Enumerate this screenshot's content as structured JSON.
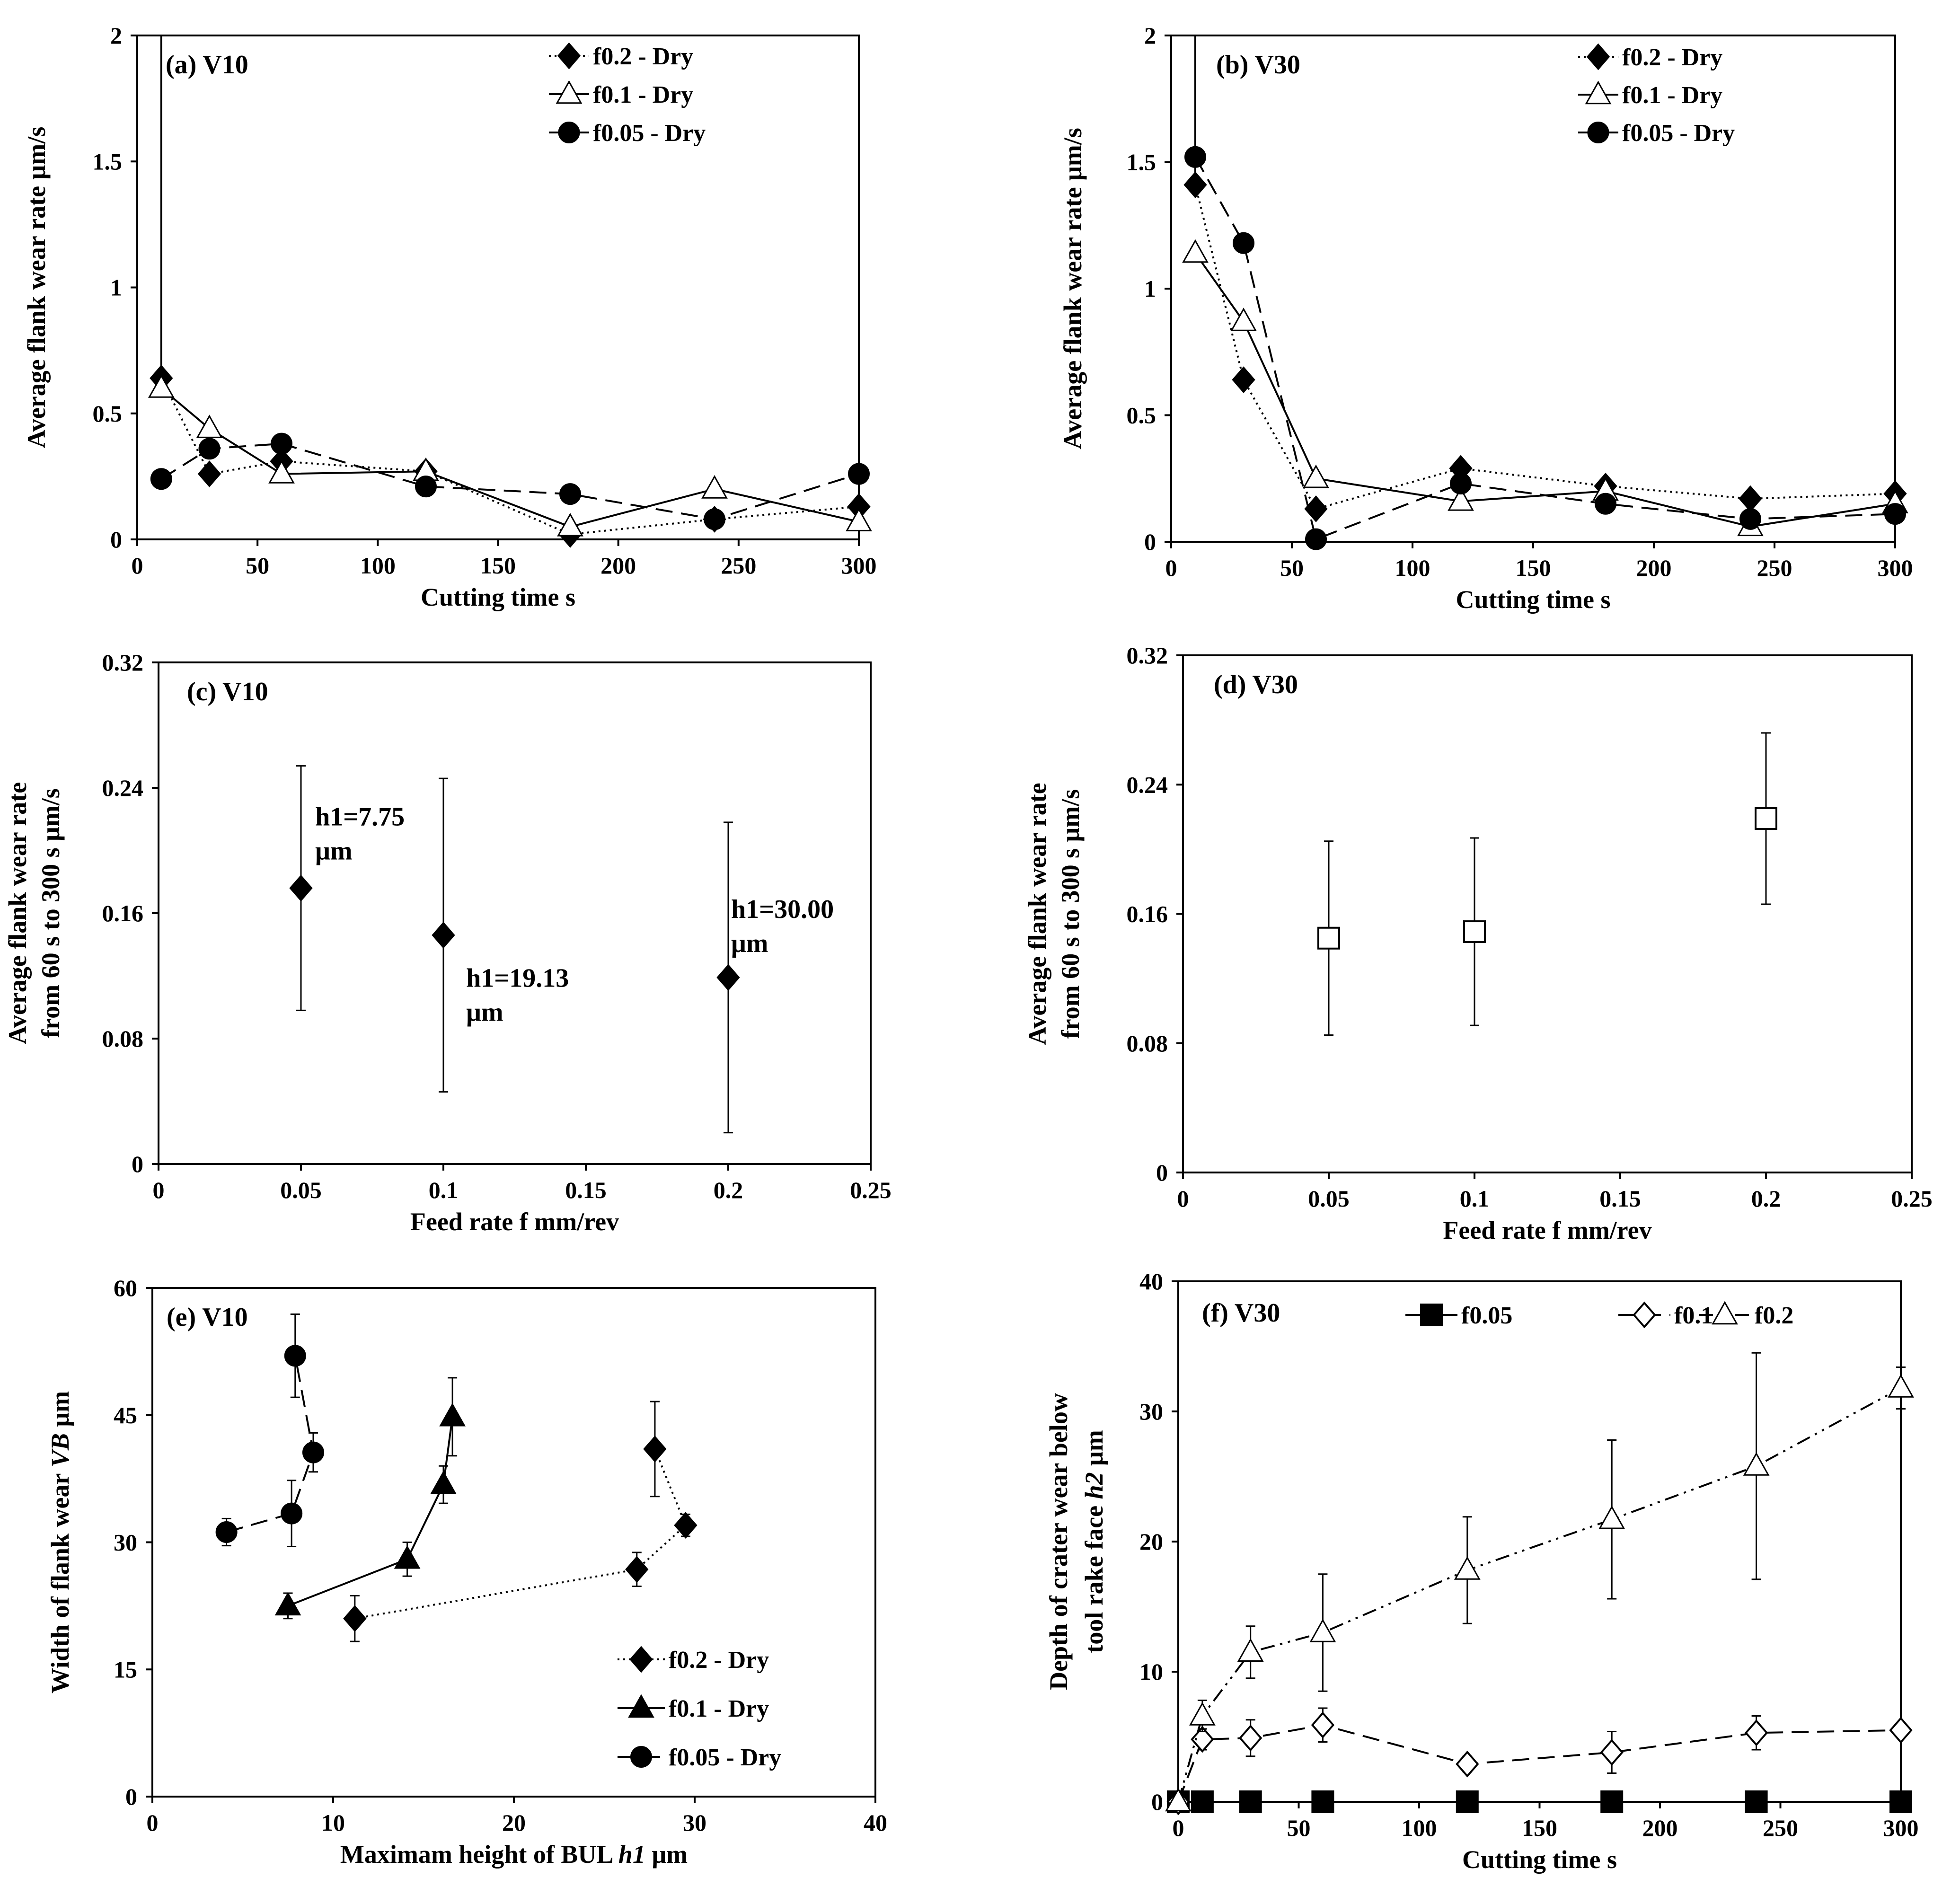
{
  "chart_data": [
    {
      "id": "a",
      "type": "line",
      "title": "(a) V10",
      "xlabel": "Cutting time s",
      "ylabel": "Average flank wear rate μm/s",
      "xlim": [
        0,
        300
      ],
      "ylim": [
        0,
        2
      ],
      "xticks": [
        0,
        50,
        100,
        150,
        200,
        250,
        300
      ],
      "yticks": [
        0,
        0.5,
        1,
        1.5,
        2
      ],
      "ytick_labels": [
        "0",
        "0.5",
        "1",
        "1.5",
        "2"
      ],
      "legend_position": "top-right",
      "spike_from": [
        10,
        2
      ],
      "series": [
        {
          "name": "f0.2 - Dry",
          "marker": "diamond",
          "dash": "dotted",
          "x": [
            10,
            30,
            60,
            120,
            180,
            240,
            300
          ],
          "y": [
            0.64,
            0.26,
            0.31,
            0.27,
            0.02,
            0.08,
            0.13
          ]
        },
        {
          "name": "f0.1 - Dry",
          "marker": "triangle-open",
          "dash": "solid",
          "x": [
            10,
            30,
            60,
            120,
            180,
            240,
            300
          ],
          "y": [
            0.6,
            0.44,
            0.26,
            0.27,
            0.05,
            0.2,
            0.07
          ]
        },
        {
          "name": "f0.05 - Dry",
          "marker": "circle",
          "dash": "dashed",
          "x": [
            10,
            30,
            60,
            120,
            180,
            240,
            300
          ],
          "y": [
            0.24,
            0.36,
            0.38,
            0.21,
            0.18,
            0.08,
            0.26
          ]
        }
      ]
    },
    {
      "id": "b",
      "type": "line",
      "title": "(b) V30",
      "xlabel": "Cutting time s",
      "ylabel": "Average flank wear rate μm/s",
      "xlim": [
        0,
        300
      ],
      "ylim": [
        0,
        2
      ],
      "xticks": [
        0,
        50,
        100,
        150,
        200,
        250,
        300
      ],
      "yticks": [
        0,
        0.5,
        1,
        1.5,
        2
      ],
      "ytick_labels": [
        "0",
        "0.5",
        "1",
        "1.5",
        "2"
      ],
      "legend_position": "top-right",
      "spike_from": [
        10,
        2
      ],
      "series": [
        {
          "name": "f0.2 - Dry",
          "marker": "diamond",
          "dash": "dotted",
          "x": [
            10,
            30,
            60,
            120,
            180,
            240,
            300
          ],
          "y": [
            1.41,
            0.64,
            0.13,
            0.29,
            0.22,
            0.17,
            0.19
          ]
        },
        {
          "name": "f0.1 - Dry",
          "marker": "triangle-open",
          "dash": "solid",
          "x": [
            10,
            30,
            60,
            120,
            180,
            240,
            300
          ],
          "y": [
            1.14,
            0.87,
            0.25,
            0.16,
            0.2,
            0.06,
            0.15
          ]
        },
        {
          "name": "f0.05 - Dry",
          "marker": "circle",
          "dash": "dashed",
          "x": [
            10,
            30,
            60,
            120,
            180,
            240,
            300
          ],
          "y": [
            1.52,
            1.18,
            0.01,
            0.23,
            0.15,
            0.09,
            0.11
          ]
        }
      ]
    },
    {
      "id": "c",
      "type": "scatter",
      "title": "(c) V10",
      "xlabel": "Feed rate f mm/rev",
      "ylabel": [
        "Average flank wear rate",
        "from 60 s to 300 s μm/s"
      ],
      "xlim": [
        0,
        0.25
      ],
      "ylim": [
        0,
        0.32
      ],
      "xticks": [
        0,
        0.05,
        0.1,
        0.15,
        0.2,
        0.25
      ],
      "xtick_labels": [
        "0",
        "0.05",
        "0.1",
        "0.15",
        "0.2",
        "0.25"
      ],
      "yticks": [
        0,
        0.08,
        0.16,
        0.24,
        0.32
      ],
      "ytick_labels": [
        "0",
        "0.08",
        "0.16",
        "0.24",
        "0.32"
      ],
      "series": [
        {
          "name": "V10",
          "marker": "diamond",
          "x": [
            0.05,
            0.1,
            0.2
          ],
          "y": [
            0.176,
            0.146,
            0.119
          ],
          "err": [
            0.078,
            0.1,
            0.099
          ]
        }
      ],
      "annotations": [
        {
          "lines": [
            "h1=7.75",
            "μm"
          ],
          "x": 0.055,
          "y": 0.216
        },
        {
          "lines": [
            "h1=19.13",
            "μm"
          ],
          "x": 0.108,
          "y": 0.113
        },
        {
          "lines": [
            "h1=30.00",
            "μm"
          ],
          "x": 0.201,
          "y": 0.157
        }
      ]
    },
    {
      "id": "d",
      "type": "scatter",
      "title": "(d) V30",
      "xlabel": "Feed rate f mm/rev",
      "ylabel": [
        "Average flank wear rate",
        "from 60 s to 300 s μm/s"
      ],
      "xlim": [
        0,
        0.25
      ],
      "ylim": [
        0,
        0.32
      ],
      "xticks": [
        0,
        0.05,
        0.1,
        0.15,
        0.2,
        0.25
      ],
      "xtick_labels": [
        "0",
        "0.05",
        "0.1",
        "0.15",
        "0.2",
        "0.25"
      ],
      "yticks": [
        0,
        0.08,
        0.16,
        0.24,
        0.32
      ],
      "ytick_labels": [
        "0",
        "0.08",
        "0.16",
        "0.24",
        "0.32"
      ],
      "series": [
        {
          "name": "V30",
          "marker": "square-open",
          "x": [
            0.05,
            0.1,
            0.2
          ],
          "y": [
            0.145,
            0.149,
            0.219
          ],
          "err": [
            0.06,
            0.058,
            0.053
          ]
        }
      ]
    },
    {
      "id": "e",
      "type": "line",
      "title": "(e) V10",
      "xlabel": "Maximam height of BUL",
      "xlabel_var": "h1",
      "xlabel_unit": "μm",
      "ylabel": "Width of flank wear",
      "ylabel_var": "VB",
      "ylabel_unit": "μm",
      "xlim": [
        0,
        40
      ],
      "ylim": [
        0,
        60
      ],
      "xticks": [
        0,
        10,
        20,
        30,
        40
      ],
      "yticks": [
        0,
        15,
        30,
        45,
        60
      ],
      "legend_position": "bottom-right",
      "series": [
        {
          "name": "f0.2 - Dry",
          "marker": "diamond",
          "dash": "dotted",
          "x": [
            11.2,
            26.8,
            29.5,
            27.8
          ],
          "y": [
            21,
            26.8,
            32,
            41
          ],
          "err": [
            2.7,
            2,
            1.3,
            5.6
          ]
        },
        {
          "name": "f0.1 - Dry",
          "marker": "triangle",
          "dash": "solid",
          "x": [
            7.5,
            14.1,
            16.1,
            16.6
          ],
          "y": [
            22.5,
            28,
            36.8,
            44.8
          ],
          "err": [
            1.5,
            2,
            2.2,
            4.6
          ]
        },
        {
          "name": "f0.05 - Dry",
          "marker": "circle",
          "dash": "dashed",
          "x": [
            4.1,
            7.7,
            8.9,
            7.9
          ],
          "y": [
            31.2,
            33.4,
            40.6,
            52
          ],
          "err": [
            1.6,
            3.9,
            2.3,
            4.9
          ]
        }
      ]
    },
    {
      "id": "f",
      "type": "line",
      "title": "(f) V30",
      "xlabel": "Cutting time s",
      "ylabel": [
        "Depth of crater wear below",
        "tool rake face"
      ],
      "ylabel_var": "h2",
      "ylabel_unit": "μm",
      "xlim": [
        0,
        300
      ],
      "ylim": [
        0,
        40
      ],
      "xticks": [
        0,
        50,
        100,
        150,
        200,
        250,
        300
      ],
      "yticks": [
        0,
        10,
        20,
        30,
        40
      ],
      "legend_position": "top",
      "series": [
        {
          "name": "f0.05",
          "marker": "square",
          "dash": "solid",
          "x": [
            0,
            10,
            30,
            60,
            120,
            180,
            240,
            300
          ],
          "y": [
            0,
            0,
            0,
            0,
            0,
            0,
            0,
            0
          ],
          "err": [
            0,
            0,
            0,
            0,
            0,
            0,
            0,
            0
          ]
        },
        {
          "name": "f0.1",
          "marker": "diamond-open",
          "dash": "dashed",
          "x": [
            0,
            10,
            30,
            60,
            120,
            180,
            240,
            300
          ],
          "y": [
            0,
            4.8,
            4.9,
            5.9,
            2.9,
            3.8,
            5.3,
            5.5
          ],
          "err": [
            0,
            0.8,
            1.4,
            1.3,
            0.6,
            1.6,
            1.3,
            0.4
          ]
        },
        {
          "name": "f0.2",
          "marker": "triangle-open",
          "dash": "dashdotdot",
          "x": [
            0,
            10,
            30,
            60,
            120,
            180,
            240,
            300
          ],
          "y": [
            0,
            6.6,
            11.5,
            13,
            17.8,
            21.7,
            25.8,
            31.8
          ],
          "err": [
            0,
            1.2,
            2,
            4.5,
            4.1,
            6.1,
            8.7,
            1.6
          ]
        }
      ]
    }
  ]
}
